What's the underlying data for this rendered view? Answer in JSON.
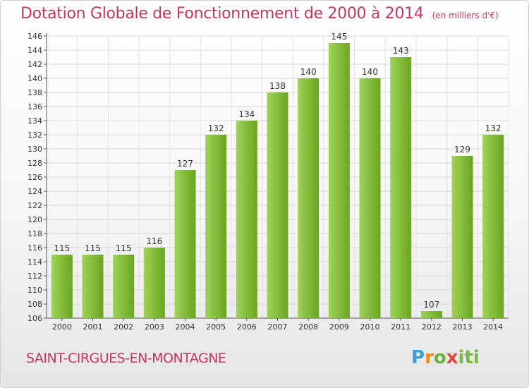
{
  "title": "Dotation Globale de Fonctionnement de 2000 à 2014",
  "subtitle": "(en milliers d'€)",
  "footer": {
    "town": "SAINT-CIRGUES-EN-MONTAGNE",
    "logo_text": "Proxiti"
  },
  "colors": {
    "title": "#c0395a",
    "bar_light": "#9fd25a",
    "bar_dark": "#6aa61e",
    "logo_p": "#3aa0d8",
    "logo_r": "#f08a1c",
    "logo_o": "#6cb33f",
    "logo_x": "#e0473a",
    "logo_iti": "#7ab648"
  },
  "chart_data": {
    "type": "bar",
    "title": "Dotation Globale de Fonctionnement de 2000 à 2014",
    "subtitle": "(en milliers d'€)",
    "categories": [
      "2000",
      "2001",
      "2002",
      "2003",
      "2004",
      "2005",
      "2006",
      "2007",
      "2008",
      "2009",
      "2010",
      "2011",
      "2012",
      "2013",
      "2014"
    ],
    "values": [
      115,
      115,
      115,
      116,
      127,
      132,
      134,
      138,
      140,
      145,
      140,
      143,
      107,
      129,
      132
    ],
    "ylim": [
      106,
      146
    ],
    "yticks": [
      106,
      108,
      110,
      112,
      114,
      116,
      118,
      120,
      122,
      124,
      126,
      128,
      130,
      132,
      134,
      136,
      138,
      140,
      142,
      144,
      146
    ],
    "grid": true,
    "legend": "none"
  }
}
